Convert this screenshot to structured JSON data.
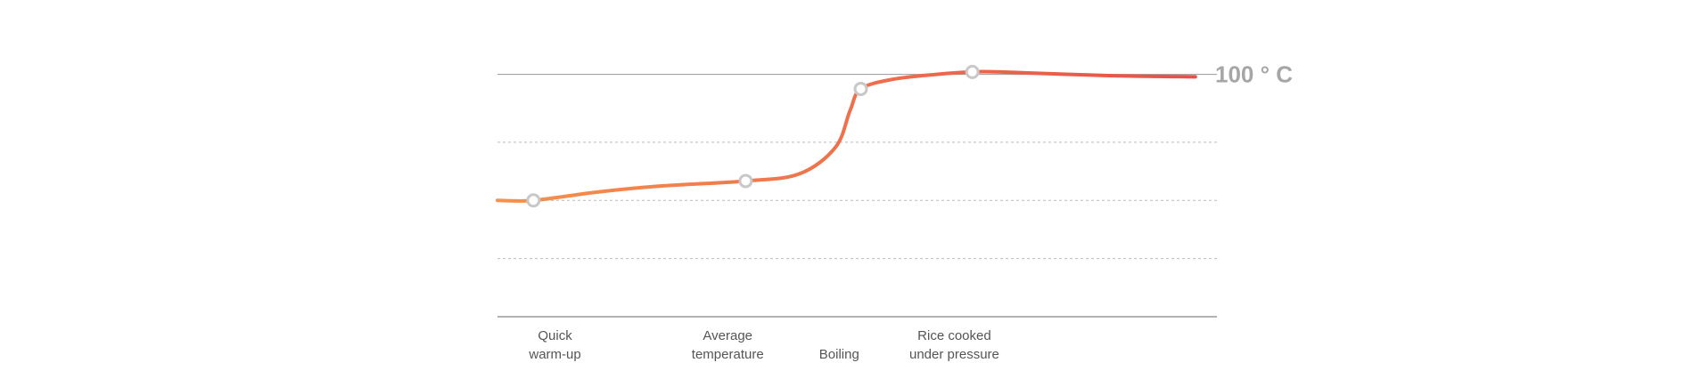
{
  "chart_data": {
    "type": "line",
    "title": "",
    "xlabel": "",
    "ylabel": "",
    "reference_line": {
      "label": "100 ° C",
      "value": 100
    },
    "ylim": [
      0,
      105
    ],
    "xlim": [
      0,
      100
    ],
    "grid": true,
    "series": [
      {
        "values": [
          {
            "x": 0,
            "y": 48
          },
          {
            "x": 5,
            "y": 48
          },
          {
            "x": 14,
            "y": 51.5
          },
          {
            "x": 23,
            "y": 54
          },
          {
            "x": 34.5,
            "y": 56
          },
          {
            "x": 42,
            "y": 59
          },
          {
            "x": 47,
            "y": 70
          },
          {
            "x": 49,
            "y": 85
          },
          {
            "x": 50.5,
            "y": 94
          },
          {
            "x": 55,
            "y": 98
          },
          {
            "x": 61,
            "y": 100
          },
          {
            "x": 66,
            "y": 101
          },
          {
            "x": 70,
            "y": 101
          },
          {
            "x": 85,
            "y": 99.5
          },
          {
            "x": 97,
            "y": 99
          }
        ]
      }
    ],
    "stages": [
      {
        "label": [
          "Quick",
          "warm-up"
        ],
        "label_x": 8,
        "point": {
          "x": 5,
          "y": 48
        }
      },
      {
        "label": [
          "Average",
          "temperature"
        ],
        "label_x": 32,
        "point": {
          "x": 34.5,
          "y": 56
        }
      },
      {
        "label": [
          "",
          "Boiling"
        ],
        "label_x": 47.5,
        "point": {
          "x": 50.5,
          "y": 94
        }
      },
      {
        "label": [
          "Rice cooked",
          "under pressure"
        ],
        "label_x": 63.5,
        "point": {
          "x": 66,
          "y": 101
        }
      }
    ],
    "colors": {
      "line_start": "#f4924e",
      "line_end": "#e8504a",
      "marker": "#c8c8c8",
      "grid": "#bbbbbb",
      "axis": "#999999",
      "ref_label": "#a6a6a6"
    }
  }
}
